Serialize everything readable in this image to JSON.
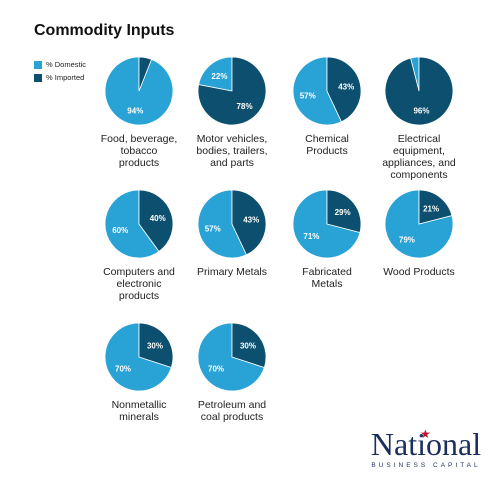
{
  "title": "Commodity Inputs",
  "legend": [
    {
      "label": "% Domestic",
      "color": "#29a3d6"
    },
    {
      "label": "% Imported",
      "color": "#0d4f6e"
    }
  ],
  "chart_data": [
    {
      "type": "pie",
      "title": "Food, beverage, tobacco products",
      "labels": [
        "% Domestic",
        "% Imported"
      ],
      "values": [
        94,
        6
      ],
      "value_labels": [
        "94%",
        ""
      ]
    },
    {
      "type": "pie",
      "title": "Motor vehicles, bodies, trailers, and parts",
      "labels": [
        "% Domestic",
        "% Imported"
      ],
      "values": [
        22,
        78
      ],
      "value_labels": [
        "22%",
        "78%"
      ]
    },
    {
      "type": "pie",
      "title": "Chemical Products",
      "labels": [
        "% Domestic",
        "% Imported"
      ],
      "values": [
        57,
        43
      ],
      "value_labels": [
        "57%",
        "43%"
      ]
    },
    {
      "type": "pie",
      "title": "Electrical equipment, appliances, and components",
      "labels": [
        "% Domestic",
        "% Imported"
      ],
      "values": [
        4,
        96
      ],
      "value_labels": [
        "",
        "96%"
      ]
    },
    {
      "type": "pie",
      "title": "Computers and electronic products",
      "labels": [
        "% Domestic",
        "% Imported"
      ],
      "values": [
        60,
        40
      ],
      "value_labels": [
        "60%",
        "40%"
      ]
    },
    {
      "type": "pie",
      "title": "Primary Metals",
      "labels": [
        "% Domestic",
        "% Imported"
      ],
      "values": [
        57,
        43
      ],
      "value_labels": [
        "57%",
        "43%"
      ]
    },
    {
      "type": "pie",
      "title": "Fabricated Metals",
      "labels": [
        "% Domestic",
        "% Imported"
      ],
      "values": [
        71,
        29
      ],
      "value_labels": [
        "71%",
        "29%"
      ]
    },
    {
      "type": "pie",
      "title": "Wood Products",
      "labels": [
        "% Domestic",
        "% Imported"
      ],
      "values": [
        79,
        21
      ],
      "value_labels": [
        "79%",
        "21%"
      ]
    },
    {
      "type": "pie",
      "title": "Nonmetallic minerals",
      "labels": [
        "% Domestic",
        "% Imported"
      ],
      "values": [
        70,
        30
      ],
      "value_labels": [
        "70%",
        "30%"
      ]
    },
    {
      "type": "pie",
      "title": "Petroleum and coal products",
      "labels": [
        "% Domestic",
        "% Imported"
      ],
      "values": [
        70,
        30
      ],
      "value_labels": [
        "70%",
        "30%"
      ]
    }
  ],
  "chart_labels": [
    [
      "Food, beverage,",
      "tobacco",
      "products"
    ],
    [
      "Motor vehicles,",
      "bodies, trailers,",
      "and parts"
    ],
    [
      "Chemical",
      "Products"
    ],
    [
      "Electrical",
      "equipment,",
      "appliances, and",
      "components"
    ],
    [
      "Computers and",
      "electronic",
      "products"
    ],
    [
      "Primary Metals"
    ],
    [
      "Fabricated",
      "Metals"
    ],
    [
      "Wood Products"
    ],
    [
      "Nonmetallic",
      "minerals"
    ],
    [
      "Petroleum and",
      "coal products"
    ]
  ],
  "logo": {
    "word": "National",
    "sub": "BUSINESS CAPITAL"
  }
}
